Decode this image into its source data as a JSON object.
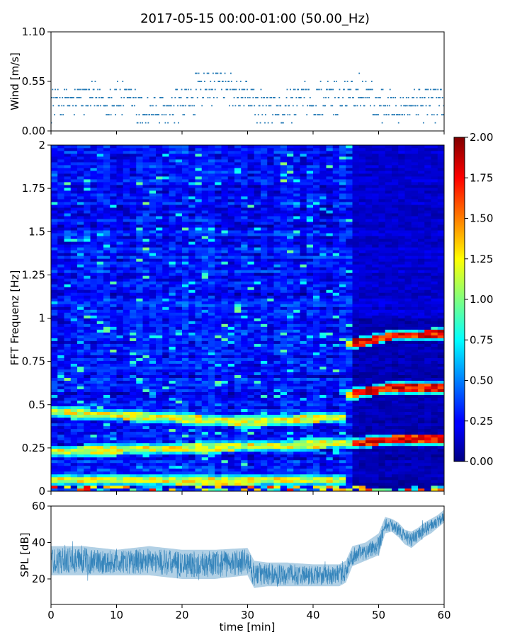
{
  "title": "2017-05-15 00:00-01:00 (50.00_Hz)",
  "chart_data": [
    {
      "type": "scatter",
      "name": "wind-panel",
      "ylabel": "Wind [m/s]",
      "xlim": [
        0,
        60
      ],
      "ylim": [
        0,
        1.1
      ],
      "yticks": [
        "0.00",
        "0.55",
        "1.10"
      ],
      "ytick_values": [
        0,
        0.55,
        1.1
      ],
      "levels": [
        0.09,
        0.18,
        0.28,
        0.37,
        0.46,
        0.55,
        0.64,
        0.73,
        0.82,
        0.92,
        1.1
      ],
      "segments": [
        {
          "x": [
            0,
            4
          ],
          "mean": 0.32
        },
        {
          "x": [
            4,
            8
          ],
          "mean": 0.36
        },
        {
          "x": [
            8,
            13
          ],
          "mean": 0.34
        },
        {
          "x": [
            13,
            19
          ],
          "mean": 0.22
        },
        {
          "x": [
            19,
            22
          ],
          "mean": 0.3
        },
        {
          "x": [
            22,
            27
          ],
          "mean": 0.5
        },
        {
          "x": [
            27,
            31
          ],
          "mean": 0.4
        },
        {
          "x": [
            31,
            36
          ],
          "mean": 0.24
        },
        {
          "x": [
            36,
            41
          ],
          "mean": 0.32
        },
        {
          "x": [
            41,
            45
          ],
          "mean": 0.36
        },
        {
          "x": [
            45,
            49
          ],
          "mean": 0.44
        },
        {
          "x": [
            49,
            55
          ],
          "mean": 0.3
        },
        {
          "x": [
            55,
            60
          ],
          "mean": 0.32
        }
      ],
      "color": "#1f77b4"
    },
    {
      "type": "heatmap",
      "name": "spectrogram-panel",
      "ylabel": "FFT Frequenz [Hz]",
      "xlim": [
        0,
        60
      ],
      "ylim": [
        0,
        2
      ],
      "yticks": [
        "0",
        "0.25",
        "0.5",
        "0.75",
        "1",
        "1.25",
        "1.5",
        "1.75",
        "2"
      ],
      "ytick_values": [
        0,
        0.25,
        0.5,
        0.75,
        1,
        1.25,
        1.5,
        1.75,
        2
      ],
      "colorbar": {
        "range": [
          0,
          2
        ],
        "ticks": [
          "0.00",
          "0.25",
          "0.50",
          "0.75",
          "1.00",
          "1.25",
          "1.50",
          "1.75",
          "2.00"
        ],
        "tick_values": [
          0,
          0.25,
          0.5,
          0.75,
          1,
          1.25,
          1.5,
          1.75,
          2
        ],
        "colormap": "jet"
      },
      "ridges": [
        {
          "x": [
            0,
            10,
            20,
            30,
            40,
            45
          ],
          "y": [
            0.46,
            0.44,
            0.42,
            0.4,
            0.42,
            0.43
          ]
        },
        {
          "x": [
            0,
            10,
            20,
            30,
            40,
            45,
            47,
            52,
            60
          ],
          "y": [
            0.23,
            0.24,
            0.25,
            0.26,
            0.27,
            0.28,
            0.28,
            0.3,
            0.3
          ]
        },
        {
          "x": [
            45,
            47,
            52,
            60
          ],
          "y": [
            0.55,
            0.57,
            0.6,
            0.6
          ]
        },
        {
          "x": [
            45,
            47,
            52,
            60
          ],
          "y": [
            0.85,
            0.86,
            0.9,
            0.91
          ]
        },
        {
          "x": [
            0,
            10,
            20,
            30,
            40,
            45
          ],
          "y": [
            0.07,
            0.07,
            0.06,
            0.06,
            0.07,
            0.07
          ]
        }
      ],
      "regime_change_min": 46
    },
    {
      "type": "area",
      "name": "spl-panel",
      "ylabel": "SPL [dB]",
      "xlabel": "time [min]",
      "xlim": [
        0,
        60
      ],
      "ylim": [
        6,
        60
      ],
      "yticks": [
        "20",
        "40",
        "60"
      ],
      "ytick_values": [
        20,
        40,
        60
      ],
      "xticks": [
        "0",
        "10",
        "20",
        "30",
        "40",
        "50",
        "60"
      ],
      "xtick_values": [
        0,
        10,
        20,
        30,
        40,
        50,
        60
      ],
      "envelope": {
        "x": [
          0,
          5,
          10,
          15,
          20,
          25,
          30,
          31,
          33,
          36,
          40,
          44,
          45,
          46,
          48,
          50,
          51,
          52,
          53,
          54,
          55,
          56,
          57,
          58,
          59,
          60
        ],
        "low": [
          22,
          22,
          22,
          22,
          20,
          20,
          22,
          15,
          16,
          16,
          16,
          16,
          18,
          27,
          30,
          33,
          45,
          46,
          43,
          39,
          37,
          40,
          43,
          45,
          48,
          51
        ],
        "high": [
          38,
          38,
          36,
          38,
          36,
          36,
          37,
          30,
          29,
          29,
          28,
          28,
          30,
          38,
          40,
          45,
          54,
          53,
          51,
          47,
          46,
          48,
          51,
          53,
          55,
          58
        ]
      },
      "color": "#1f77b4"
    }
  ]
}
